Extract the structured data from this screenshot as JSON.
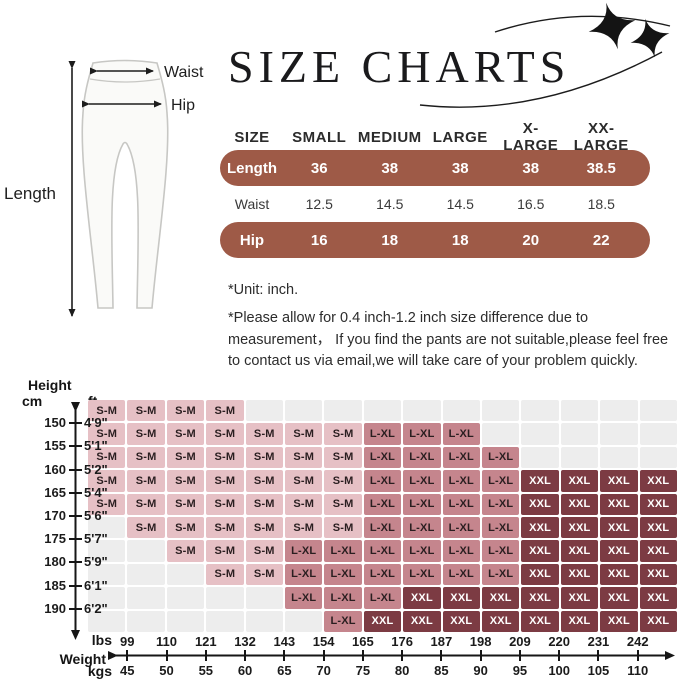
{
  "title": "SIZE CHARTS",
  "illustration": {
    "waist_label": "Waist",
    "hip_label": "Hip",
    "length_label": "Length"
  },
  "size_table": {
    "headers": [
      "SIZE",
      "SMALL",
      "MEDIUM",
      "LARGE",
      "X-LARGE",
      "XX-LARGE"
    ],
    "rows": [
      {
        "label": "Length",
        "style": "pill",
        "values": [
          "36",
          "38",
          "38",
          "38",
          "38.5"
        ]
      },
      {
        "label": "Waist",
        "style": "plain",
        "values": [
          "12.5",
          "14.5",
          "14.5",
          "16.5",
          "18.5"
        ]
      },
      {
        "label": "Hip",
        "style": "pill",
        "values": [
          "16",
          "18",
          "18",
          "20",
          "22"
        ]
      }
    ]
  },
  "notes": {
    "unit": "*Unit: inch.",
    "disclaimer": "*Please allow for 0.4 inch-1.2 inch size difference due to measurement，  If you find the pants are not suitable,please feel free to contact us via email,we will take care of your problem quickly."
  },
  "hw_axis": {
    "height_label": "Height",
    "cm_label": "cm",
    "ft_label": "ft",
    "weight_label": "Weight",
    "lbs_label": "lbs",
    "kgs_label": "kgs"
  },
  "chart_data": [
    {
      "type": "table",
      "title": "SIZE CHARTS",
      "unit": "inch",
      "columns": [
        "SIZE",
        "SMALL",
        "MEDIUM",
        "LARGE",
        "X-LARGE",
        "XX-LARGE"
      ],
      "rows": [
        [
          "Length",
          36,
          38,
          38,
          38,
          38.5
        ],
        [
          "Waist",
          12.5,
          14.5,
          14.5,
          16.5,
          18.5
        ],
        [
          "Hip",
          16,
          18,
          18,
          20,
          22
        ]
      ]
    },
    {
      "type": "heatmap",
      "xlabel": "Weight",
      "ylabel": "Height",
      "x_ticks_lbs": [
        "99",
        "110",
        "121",
        "132",
        "143",
        "154",
        "165",
        "176",
        "187",
        "198",
        "209",
        "220",
        "231",
        "242"
      ],
      "x_ticks_kgs": [
        "45",
        "50",
        "55",
        "60",
        "65",
        "70",
        "75",
        "80",
        "85",
        "90",
        "95",
        "100",
        "105",
        "110"
      ],
      "y_ticks_cm": [
        "150",
        "155",
        "160",
        "165",
        "170",
        "175",
        "180",
        "185",
        "190"
      ],
      "y_ticks_ft": [
        "4'9\"",
        "5'1\"",
        "5'2\"",
        "5'4\"",
        "5'6\"",
        "5'7\"",
        "5'9\"",
        "6'1\"",
        "6'2\""
      ],
      "legend_values": [
        "S-M",
        "L-XL",
        "XXL"
      ],
      "cells": [
        [
          "S-M",
          "S-M",
          "S-M",
          "S-M",
          "",
          "",
          "",
          "",
          "",
          "",
          "",
          "",
          "",
          "",
          ""
        ],
        [
          "S-M",
          "S-M",
          "S-M",
          "S-M",
          "S-M",
          "S-M",
          "S-M",
          "L-XL",
          "L-XL",
          "L-XL",
          "",
          "",
          "",
          "",
          ""
        ],
        [
          "S-M",
          "S-M",
          "S-M",
          "S-M",
          "S-M",
          "S-M",
          "S-M",
          "L-XL",
          "L-XL",
          "L-XL",
          "L-XL",
          "",
          "",
          "",
          ""
        ],
        [
          "S-M",
          "S-M",
          "S-M",
          "S-M",
          "S-M",
          "S-M",
          "S-M",
          "L-XL",
          "L-XL",
          "L-XL",
          "L-XL",
          "XXL",
          "XXL",
          "XXL",
          "XXL"
        ],
        [
          "S-M",
          "S-M",
          "S-M",
          "S-M",
          "S-M",
          "S-M",
          "S-M",
          "L-XL",
          "L-XL",
          "L-XL",
          "L-XL",
          "XXL",
          "XXL",
          "XXL",
          "XXL"
        ],
        [
          "",
          "S-M",
          "S-M",
          "S-M",
          "S-M",
          "S-M",
          "S-M",
          "L-XL",
          "L-XL",
          "L-XL",
          "L-XL",
          "XXL",
          "XXL",
          "XXL",
          "XXL"
        ],
        [
          "",
          "",
          "S-M",
          "S-M",
          "S-M",
          "L-XL",
          "L-XL",
          "L-XL",
          "L-XL",
          "L-XL",
          "L-XL",
          "XXL",
          "XXL",
          "XXL",
          "XXL"
        ],
        [
          "",
          "",
          "",
          "S-M",
          "S-M",
          "L-XL",
          "L-XL",
          "L-XL",
          "L-XL",
          "L-XL",
          "L-XL",
          "XXL",
          "XXL",
          "XXL",
          "XXL"
        ],
        [
          "",
          "",
          "",
          "",
          "",
          "L-XL",
          "L-XL",
          "L-XL",
          "XXL",
          "XXL",
          "XXL",
          "XXL",
          "XXL",
          "XXL",
          "XXL"
        ],
        [
          "",
          "",
          "",
          "",
          "",
          "",
          "L-XL",
          "XXL",
          "XXL",
          "XXL",
          "XXL",
          "XXL",
          "XXL",
          "XXL",
          "XXL"
        ]
      ]
    }
  ],
  "colors": {
    "pill": "#9e5a47",
    "sm": "#e6c0c5",
    "lxl": "#c5858d",
    "xxl": "#7c3b43",
    "empty": "#ededed",
    "ink": "#222222"
  }
}
